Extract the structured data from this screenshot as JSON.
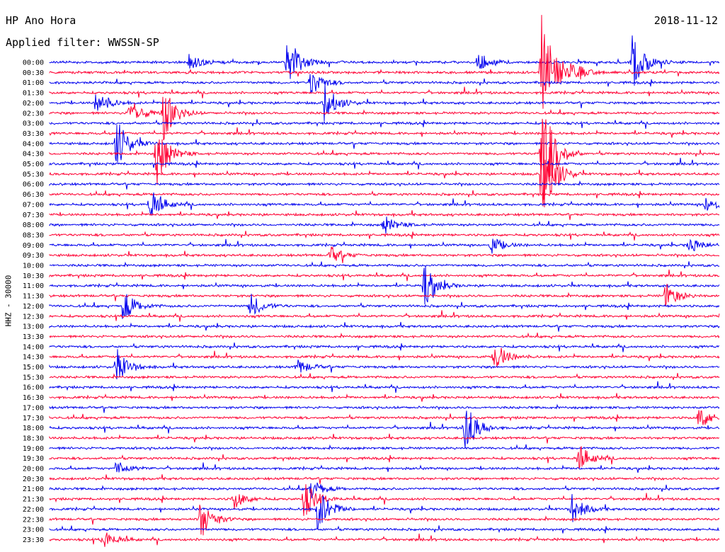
{
  "header": {
    "station": "HP Ano Hora",
    "filter": "Applied filter: WWSSN-SP",
    "date": "2018-11-12",
    "channel": "HHZ - 30000"
  },
  "colors": {
    "blue_trace": "#0000ee",
    "red_trace": "#ff0033"
  },
  "chart_data": {
    "type": "line",
    "title": "HP Ano Hora",
    "subtitle": "Applied filter: WWSSN-SP",
    "ylabel": "HHZ - 30000",
    "xlabel": "",
    "y_tick_labels": [
      "00:00",
      "00:30",
      "01:00",
      "01:30",
      "02:00",
      "02:30",
      "03:00",
      "03:30",
      "04:00",
      "04:30",
      "05:00",
      "05:30",
      "06:00",
      "06:30",
      "07:00",
      "07:30",
      "08:00",
      "08:30",
      "09:00",
      "09:30",
      "10:00",
      "10:30",
      "11:00",
      "11:30",
      "12:00",
      "12:30",
      "13:00",
      "13:30",
      "14:00",
      "14:30",
      "15:00",
      "15:30",
      "16:00",
      "16:30",
      "17:00",
      "17:30",
      "18:00",
      "18:30",
      "19:00",
      "19:30",
      "20:00",
      "20:30",
      "21:00",
      "21:30",
      "22:00",
      "22:30",
      "23:00",
      "23:30"
    ],
    "trace_color_cycle": [
      "blue",
      "red"
    ],
    "events": [
      {
        "row": 0,
        "x": 0.355,
        "amp": 38
      },
      {
        "row": 0,
        "x": 0.87,
        "amp": 45
      },
      {
        "row": 0,
        "x": 0.64,
        "amp": 14
      },
      {
        "row": 0,
        "x": 0.21,
        "amp": 12
      },
      {
        "row": 1,
        "x": 0.78,
        "amp": 16
      },
      {
        "row": 1,
        "x": 0.735,
        "amp": 90
      },
      {
        "row": 2,
        "x": 0.39,
        "amp": 20
      },
      {
        "row": 4,
        "x": 0.41,
        "amp": 30
      },
      {
        "row": 4,
        "x": 0.07,
        "amp": 20
      },
      {
        "row": 5,
        "x": 0.12,
        "amp": 22
      },
      {
        "row": 5,
        "x": 0.17,
        "amp": 40
      },
      {
        "row": 8,
        "x": 0.1,
        "amp": 38
      },
      {
        "row": 9,
        "x": 0.16,
        "amp": 45
      },
      {
        "row": 9,
        "x": 0.735,
        "amp": 95
      },
      {
        "row": 11,
        "x": 0.735,
        "amp": 80
      },
      {
        "row": 14,
        "x": 0.15,
        "amp": 25
      },
      {
        "row": 14,
        "x": 0.98,
        "amp": 12
      },
      {
        "row": 16,
        "x": 0.5,
        "amp": 14
      },
      {
        "row": 18,
        "x": 0.66,
        "amp": 12
      },
      {
        "row": 18,
        "x": 0.955,
        "amp": 12
      },
      {
        "row": 19,
        "x": 0.42,
        "amp": 12
      },
      {
        "row": 22,
        "x": 0.56,
        "amp": 30
      },
      {
        "row": 23,
        "x": 0.92,
        "amp": 18
      },
      {
        "row": 24,
        "x": 0.11,
        "amp": 25
      },
      {
        "row": 24,
        "x": 0.3,
        "amp": 18
      },
      {
        "row": 29,
        "x": 0.665,
        "amp": 22
      },
      {
        "row": 30,
        "x": 0.1,
        "amp": 24
      },
      {
        "row": 30,
        "x": 0.37,
        "amp": 12
      },
      {
        "row": 36,
        "x": 0.62,
        "amp": 40
      },
      {
        "row": 35,
        "x": 0.97,
        "amp": 18
      },
      {
        "row": 39,
        "x": 0.79,
        "amp": 20
      },
      {
        "row": 40,
        "x": 0.1,
        "amp": 12
      },
      {
        "row": 42,
        "x": 0.39,
        "amp": 15
      },
      {
        "row": 43,
        "x": 0.275,
        "amp": 14
      },
      {
        "row": 43,
        "x": 0.38,
        "amp": 28
      },
      {
        "row": 44,
        "x": 0.78,
        "amp": 22
      },
      {
        "row": 44,
        "x": 0.4,
        "amp": 35
      },
      {
        "row": 45,
        "x": 0.225,
        "amp": 30
      },
      {
        "row": 47,
        "x": 0.08,
        "amp": 14
      }
    ]
  }
}
